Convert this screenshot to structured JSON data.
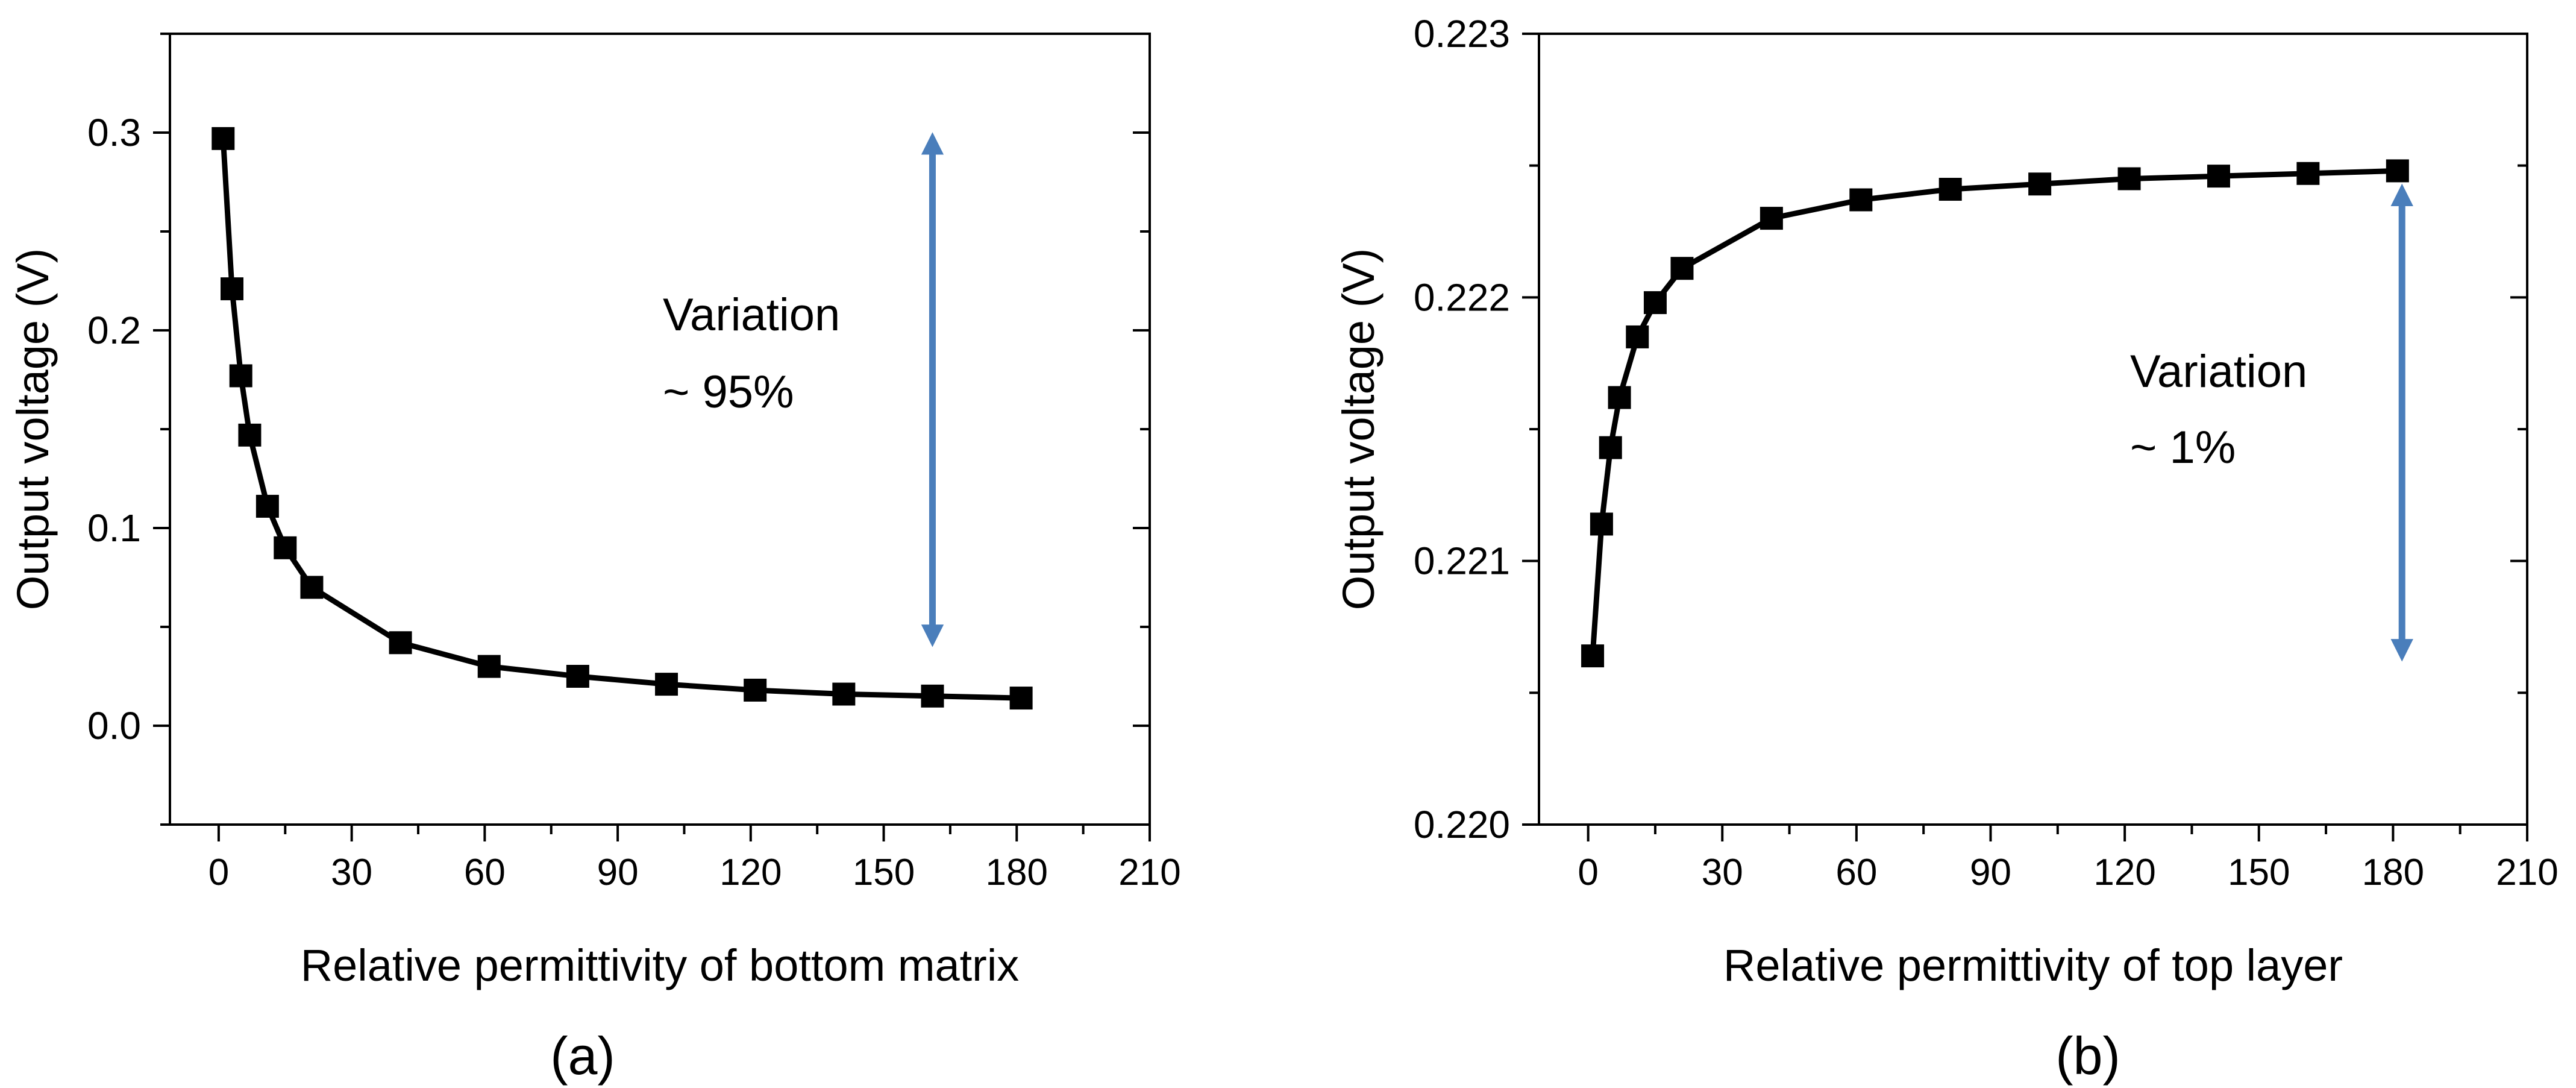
{
  "chart_data": [
    {
      "type": "line",
      "panel_label": "(a)",
      "xlabel": "Relative permittivity of bottom matrix",
      "ylabel": "Output voltage (V)",
      "xlim": [
        -11,
        210
      ],
      "ylim": [
        -0.05,
        0.35
      ],
      "xticks": [
        0,
        30,
        60,
        90,
        120,
        150,
        180,
        210
      ],
      "xtick_labels": [
        "0",
        "30",
        "60",
        "90",
        "120",
        "150",
        "180",
        "210"
      ],
      "yticks": [
        0.0,
        0.1,
        0.2,
        0.3
      ],
      "ytick_labels": [
        "0.0",
        "0.1",
        "0.2",
        "0.3"
      ],
      "x": [
        1,
        3,
        5,
        7,
        11,
        15,
        21,
        41,
        61,
        81,
        101,
        121,
        141,
        161,
        181
      ],
      "y": [
        0.297,
        0.221,
        0.177,
        0.147,
        0.111,
        0.09,
        0.07,
        0.042,
        0.03,
        0.025,
        0.021,
        0.018,
        0.016,
        0.015,
        0.014
      ],
      "annotation": {
        "line1": "Variation",
        "line2": "~ 95%"
      },
      "arrow": {
        "x": 161,
        "y_from": 0.04,
        "y_to": 0.3,
        "color": "#4a7ebb"
      },
      "marker_color": "#000000",
      "line_color": "#000000"
    },
    {
      "type": "line",
      "panel_label": "(b)",
      "xlabel": "Relative permittivity of top layer",
      "ylabel": "Output voltage (V)",
      "xlim": [
        -11,
        210
      ],
      "ylim": [
        0.22,
        0.223
      ],
      "xticks": [
        0,
        30,
        60,
        90,
        120,
        150,
        180,
        210
      ],
      "xtick_labels": [
        "0",
        "30",
        "60",
        "90",
        "120",
        "150",
        "180",
        "210"
      ],
      "yticks": [
        0.22,
        0.221,
        0.222,
        0.223
      ],
      "ytick_labels": [
        "0.220",
        "0.221",
        "0.222",
        "0.223"
      ],
      "x": [
        1,
        3,
        5,
        7,
        11,
        15,
        21,
        41,
        61,
        81,
        101,
        121,
        141,
        161,
        181
      ],
      "y": [
        0.22064,
        0.22114,
        0.22143,
        0.22162,
        0.22185,
        0.22198,
        0.22211,
        0.2223,
        0.22237,
        0.22241,
        0.22243,
        0.22245,
        0.22246,
        0.22247,
        0.22248
      ],
      "annotation": {
        "line1": "Variation",
        "line2": "~ 1%"
      },
      "arrow": {
        "x": 182,
        "y_from": 0.22062,
        "y_to": 0.22243,
        "color": "#4a7ebb"
      },
      "marker_color": "#000000",
      "line_color": "#000000"
    }
  ]
}
